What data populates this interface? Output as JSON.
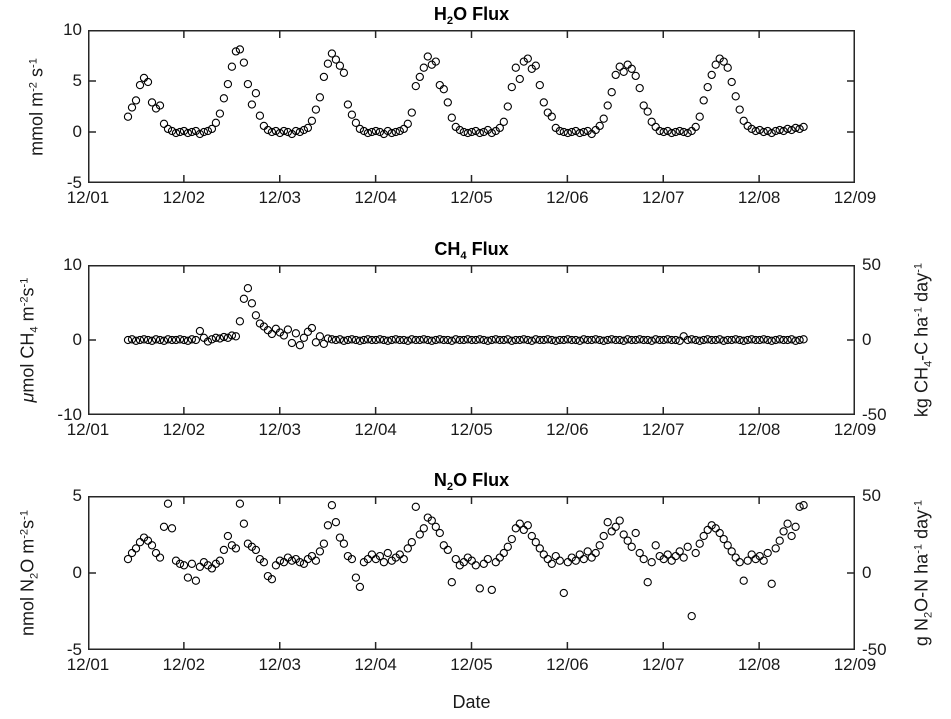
{
  "style": {
    "background": "#ffffff",
    "axis_color": "#262626",
    "marker_color": "#000000",
    "marker": "open-circle",
    "grid": "off",
    "legend": "none"
  },
  "x_axis": {
    "label": "Date",
    "tick_labels": [
      "12/01",
      "12/02",
      "12/03",
      "12/04",
      "12/05",
      "12/06",
      "12/07",
      "12/08",
      "12/09"
    ],
    "min": 0,
    "max": 8,
    "unit": "days after 12/01"
  },
  "chart_data": [
    {
      "type": "scatter",
      "title": "H_(2)O Flux",
      "title_plain": "H2O Flux",
      "ylabel": "mmol m^(-2) s^(-1)",
      "ylim": [
        -5,
        10
      ],
      "ytick_values": [
        10,
        5,
        0,
        -5
      ],
      "ytick_labels": [
        "10",
        "5",
        "0",
        "-5"
      ],
      "right_axis": null,
      "x_start": 0.417,
      "x_step": 0.0417,
      "values": [
        1.5,
        2.4,
        3.1,
        4.6,
        5.3,
        4.9,
        2.9,
        2.3,
        2.6,
        0.8,
        0.3,
        0.1,
        -0.1,
        0.0,
        0.1,
        -0.1,
        0.0,
        0.1,
        -0.2,
        0.0,
        0.1,
        0.3,
        0.9,
        1.8,
        3.3,
        4.7,
        6.4,
        7.9,
        8.1,
        6.8,
        4.7,
        2.7,
        3.8,
        1.6,
        0.6,
        0.2,
        0.0,
        0.1,
        -0.1,
        0.1,
        0.0,
        -0.2,
        0.1,
        0.0,
        0.2,
        0.4,
        1.1,
        2.2,
        3.4,
        5.4,
        6.7,
        7.7,
        7.1,
        6.5,
        5.8,
        2.7,
        1.7,
        0.9,
        0.3,
        0.1,
        -0.1,
        0.0,
        0.1,
        0.0,
        -0.2,
        0.1,
        -0.1,
        0.0,
        0.1,
        0.3,
        0.8,
        1.9,
        4.5,
        5.4,
        6.3,
        7.4,
        6.6,
        6.9,
        4.6,
        4.2,
        2.9,
        1.4,
        0.5,
        0.2,
        0.0,
        -0.1,
        0.0,
        0.1,
        -0.1,
        0.0,
        0.2,
        -0.1,
        0.1,
        0.4,
        1.0,
        2.5,
        4.4,
        6.3,
        5.2,
        6.9,
        7.2,
        6.2,
        6.5,
        4.6,
        2.9,
        1.9,
        1.5,
        0.4,
        0.1,
        0.0,
        -0.1,
        0.0,
        0.1,
        -0.1,
        0.0,
        0.1,
        -0.2,
        0.2,
        0.6,
        1.3,
        2.6,
        3.9,
        5.6,
        6.4,
        5.9,
        6.6,
        6.2,
        5.5,
        4.3,
        2.6,
        2.0,
        1.0,
        0.5,
        0.1,
        0.0,
        0.1,
        -0.1,
        0.0,
        0.1,
        0.0,
        -0.1,
        0.1,
        0.5,
        1.5,
        3.1,
        4.4,
        5.6,
        6.6,
        7.2,
        6.9,
        6.3,
        4.9,
        3.5,
        2.2,
        1.1,
        0.6,
        0.3,
        0.1,
        0.2,
        0.0,
        0.1,
        -0.1,
        0.1,
        0.2,
        0.1,
        0.3,
        0.2,
        0.4,
        0.3,
        0.5
      ]
    },
    {
      "type": "scatter",
      "title": "CH_(4) Flux",
      "title_plain": "CH4 Flux",
      "ylabel": "μmol CH_(4) m^(-2)s^(-1)",
      "ylim": [
        -10,
        10
      ],
      "ytick_values": [
        10,
        0,
        -10
      ],
      "ytick_labels": [
        "10",
        "0",
        "-10"
      ],
      "right_axis": {
        "ylabel": "kg CH_(4)-C ha^(-1) day^(-1)",
        "ylim": [
          -50,
          50
        ],
        "tick_values": [
          50,
          0,
          -50
        ],
        "tick_labels": [
          "50",
          "0",
          "-50"
        ]
      },
      "x_start": 0.417,
      "x_step": 0.0417,
      "values": [
        0.0,
        0.1,
        -0.1,
        0.0,
        0.1,
        0.0,
        -0.1,
        0.1,
        0.0,
        -0.1,
        0.1,
        0.0,
        0.0,
        0.1,
        0.0,
        -0.1,
        0.1,
        0.0,
        1.2,
        0.3,
        -0.2,
        0.1,
        0.3,
        0.2,
        0.4,
        0.3,
        0.6,
        0.5,
        2.5,
        5.5,
        6.9,
        4.9,
        3.3,
        2.2,
        1.8,
        1.3,
        0.8,
        1.5,
        1.0,
        0.6,
        1.4,
        -0.4,
        0.9,
        -0.7,
        0.3,
        1.1,
        1.6,
        -0.3,
        0.5,
        -0.5,
        0.2,
        0.1,
        0.0,
        0.1,
        -0.1,
        0.0,
        0.1,
        0.0,
        -0.1,
        0.0,
        0.1,
        0.0,
        0.0,
        0.1,
        0.0,
        -0.1,
        0.0,
        0.1,
        0.0,
        0.0,
        -0.1,
        0.1,
        0.0,
        0.0,
        0.1,
        0.0,
        -0.1,
        0.0,
        0.1,
        0.0,
        0.0,
        -0.1,
        0.1,
        0.0,
        0.0,
        0.1,
        0.0,
        0.0,
        0.1,
        0.0,
        -0.1,
        0.0,
        0.1,
        0.0,
        0.0,
        0.1,
        -0.1,
        0.0,
        0.0,
        0.1,
        0.0,
        -0.1,
        0.1,
        0.0,
        0.0,
        0.1,
        0.0,
        -0.1,
        0.0,
        0.0,
        0.1,
        0.0,
        0.0,
        -0.1,
        0.1,
        0.0,
        0.0,
        0.1,
        0.0,
        -0.1,
        0.0,
        0.1,
        0.0,
        0.0,
        -0.1,
        0.1,
        0.0,
        0.0,
        0.1,
        0.0,
        0.0,
        -0.1,
        0.1,
        0.0,
        0.0,
        0.1,
        0.0,
        0.0,
        -0.1,
        0.5,
        0.0,
        0.1,
        0.0,
        -0.1,
        0.0,
        0.1,
        0.0,
        0.0,
        0.1,
        -0.1,
        0.0,
        0.0,
        0.1,
        0.0,
        -0.1,
        0.0,
        0.1,
        0.0,
        0.0,
        0.1,
        0.0,
        -0.1,
        0.0,
        0.1,
        0.0,
        0.0,
        0.1,
        -0.1,
        0.0,
        0.1
      ]
    },
    {
      "type": "scatter",
      "title": "N_(2)O Flux",
      "title_plain": "N2O Flux",
      "ylabel": "nmol N_(2)O m^(-2)s^(-1)",
      "ylim": [
        -5,
        5
      ],
      "ytick_values": [
        5,
        0,
        -5
      ],
      "ytick_labels": [
        "5",
        "0",
        "-5"
      ],
      "right_axis": {
        "ylabel": "g N_(2)O-N ha^(-1) day^(-1)",
        "ylim": [
          -50,
          50
        ],
        "tick_values": [
          50,
          0,
          -50
        ],
        "tick_labels": [
          "50",
          "0",
          "-50"
        ]
      },
      "x_start": 0.417,
      "x_step": 0.0417,
      "values": [
        0.9,
        1.3,
        1.6,
        2.0,
        2.3,
        2.1,
        1.8,
        1.3,
        1.0,
        3.0,
        4.5,
        2.9,
        0.8,
        0.6,
        0.5,
        -0.3,
        0.6,
        -0.5,
        0.4,
        0.7,
        0.5,
        0.3,
        0.6,
        0.8,
        1.5,
        2.4,
        1.8,
        1.6,
        4.5,
        3.2,
        1.9,
        1.7,
        1.5,
        0.9,
        0.7,
        -0.2,
        -0.4,
        0.5,
        0.8,
        0.7,
        1.0,
        0.8,
        0.9,
        0.7,
        0.6,
        0.9,
        1.1,
        0.8,
        1.4,
        1.9,
        3.1,
        4.4,
        3.3,
        2.3,
        1.9,
        1.1,
        0.9,
        -0.3,
        -0.9,
        0.7,
        0.9,
        1.2,
        0.9,
        1.1,
        0.7,
        1.3,
        0.8,
        1.0,
        1.2,
        0.9,
        1.6,
        2.0,
        4.3,
        2.5,
        2.9,
        3.6,
        3.4,
        3.0,
        2.6,
        1.8,
        1.5,
        -0.6,
        0.9,
        0.5,
        0.7,
        1.0,
        0.8,
        0.5,
        -1.0,
        0.6,
        0.9,
        -1.1,
        0.7,
        1.0,
        1.3,
        1.7,
        2.2,
        2.9,
        3.2,
        2.8,
        3.1,
        2.4,
        2.0,
        1.6,
        1.2,
        0.9,
        0.6,
        1.1,
        0.8,
        -1.3,
        0.7,
        1.0,
        0.8,
        1.2,
        0.9,
        1.4,
        1.0,
        1.3,
        1.8,
        2.4,
        3.3,
        2.7,
        3.0,
        3.4,
        2.5,
        2.1,
        1.7,
        2.6,
        1.3,
        0.9,
        -0.6,
        0.7,
        1.8,
        1.1,
        0.9,
        1.2,
        0.8,
        1.1,
        1.4,
        1.0,
        1.7,
        -2.8,
        1.3,
        1.9,
        2.4,
        2.8,
        3.1,
        2.9,
        2.6,
        2.2,
        1.8,
        1.4,
        1.0,
        0.7,
        -0.5,
        0.8,
        1.2,
        0.9,
        1.1,
        0.8,
        1.3,
        -0.7,
        1.6,
        2.1,
        2.7,
        3.2,
        2.4,
        3.0,
        4.3,
        4.4
      ]
    }
  ]
}
